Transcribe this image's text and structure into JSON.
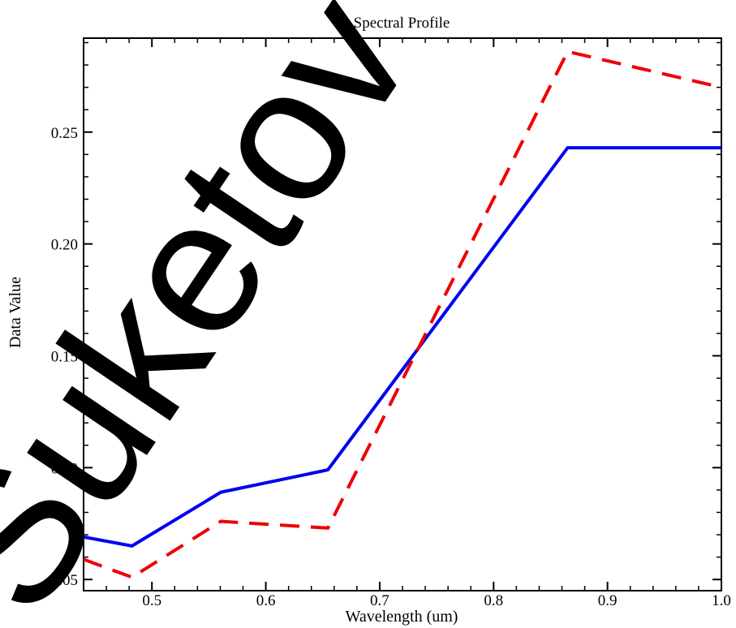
{
  "chart_data": {
    "type": "line",
    "title": "Spectral Profile",
    "xlabel": "Wavelength (um)",
    "ylabel": "Data Value",
    "xlim": [
      0.44,
      1.0
    ],
    "ylim": [
      0.045,
      0.292
    ],
    "xticks": [
      0.5,
      0.6,
      0.7,
      0.8,
      0.9,
      1.0
    ],
    "xtick_labels": [
      "0.5",
      "0.6",
      "0.7",
      "0.8",
      "0.9",
      "1.0"
    ],
    "yticks": [
      0.05,
      0.1,
      0.15,
      0.2,
      0.25
    ],
    "ytick_labels": [
      "0.05",
      "0.10",
      "0.15",
      "0.20",
      "0.25"
    ],
    "grid": false,
    "series": [
      {
        "color": "#0000ee",
        "style": "solid",
        "x": [
          0.44,
          0.4825,
          0.5605,
          0.6545,
          0.865,
          1.0
        ],
        "y": [
          0.069,
          0.065,
          0.089,
          0.099,
          0.243,
          0.243
        ]
      },
      {
        "color": "#ee0000",
        "style": "dashed",
        "x": [
          0.44,
          0.4825,
          0.5605,
          0.6545,
          0.865,
          1.0
        ],
        "y": [
          0.059,
          0.051,
          0.076,
          0.073,
          0.286,
          0.27
        ]
      }
    ]
  },
  "watermark": {
    "text": "Suketov Univ",
    "color": "#000000"
  }
}
